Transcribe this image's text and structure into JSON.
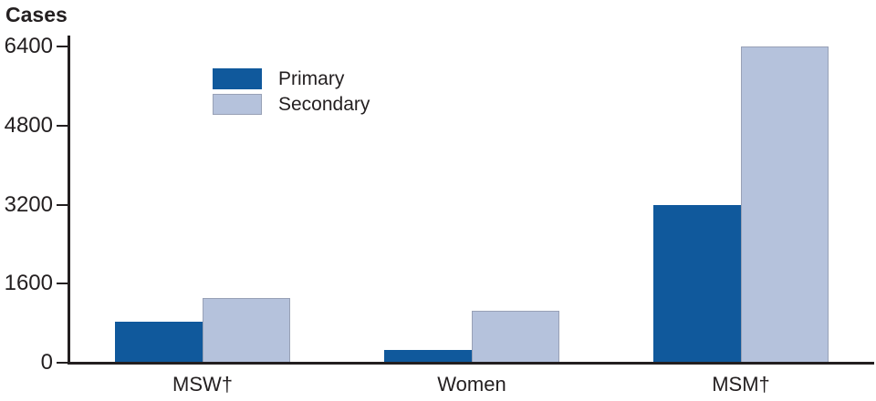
{
  "chart_data": {
    "type": "bar",
    "title": "Cases",
    "ylabel": "Cases",
    "xlabel": "",
    "categories": [
      "MSW†",
      "Women",
      "MSM†"
    ],
    "series": [
      {
        "name": "Primary",
        "color": "#10599C",
        "values": [
          830,
          250,
          3200
        ]
      },
      {
        "name": "Secondary",
        "color": "#B5C2DC",
        "values": [
          1310,
          1050,
          6400
        ]
      }
    ],
    "ylim": [
      0,
      6400
    ],
    "yticks": [
      0,
      1600,
      3200,
      4800,
      6400
    ],
    "grid": false,
    "legend_position": "top-left-inside",
    "axis_color": "#231F20",
    "text_color": "#231F20",
    "bar_border_color": "#98A1B6",
    "background_color": "#FFFFFF"
  }
}
